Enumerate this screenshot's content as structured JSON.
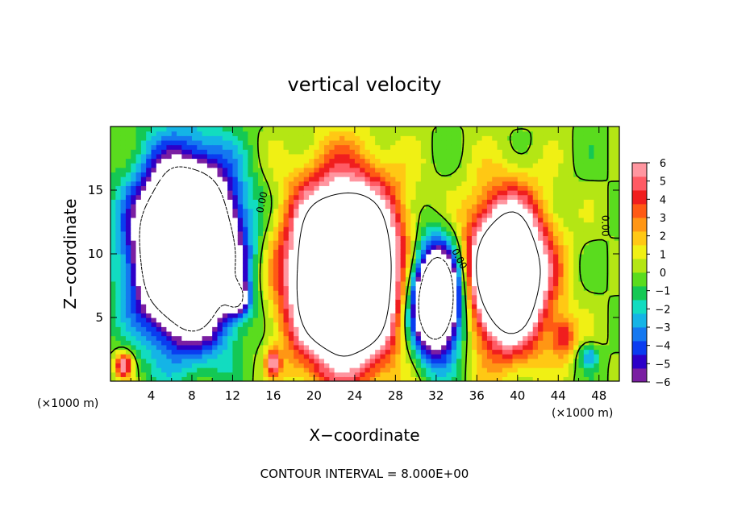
{
  "chart_data": {
    "type": "heatmap",
    "title": "vertical velocity",
    "xlabel": "X−coordinate",
    "ylabel": "Z−coordinate",
    "x_unit": "(×1000 m)",
    "y_unit": "(×1000 m)",
    "footer": "CONTOUR INTERVAL = 8.000E+00",
    "xlim": [
      0,
      50
    ],
    "ylim": [
      0,
      20
    ],
    "x_ticks": [
      "4",
      "8",
      "12",
      "16",
      "20",
      "24",
      "28",
      "32",
      "36",
      "40",
      "44",
      "48"
    ],
    "y_ticks": [
      "5",
      "10",
      "15"
    ],
    "colorbar": {
      "min": -6,
      "max": 6,
      "tick_labels": [
        "6",
        "5",
        "4",
        "3",
        "2",
        "1",
        "0",
        "−1",
        "−2",
        "−3",
        "−4",
        "−5",
        "−6"
      ],
      "colors": [
        "#7a1fa2",
        "#2d00c8",
        "#0a3cf0",
        "#1478f0",
        "#14b4e6",
        "#12dcc0",
        "#14c854",
        "#5adc1e",
        "#b4e614",
        "#f0f014",
        "#ffc814",
        "#ff9614",
        "#ff5a14",
        "#f01e1e",
        "#ff5a64",
        "#ff96a0"
      ]
    },
    "contour_label": "0.00",
    "regions": [
      {
        "kind": "downdraft",
        "x_center": 7.5,
        "z_center": 10.5,
        "x_halfwidth": 5.5,
        "z_halfwidth": 7.5,
        "w_peak": -22
      },
      {
        "kind": "downdraft",
        "x_center": 12.5,
        "z_center": 6.5,
        "x_halfwidth": 1.3,
        "z_halfwidth": 1.5,
        "w_peak": -6
      },
      {
        "kind": "updraft",
        "x_center": 23.0,
        "z_center": 8.5,
        "x_halfwidth": 6.0,
        "z_halfwidth": 8.0,
        "w_peak": 20
      },
      {
        "kind": "downdraft",
        "x_center": 32.0,
        "z_center": 6.5,
        "x_halfwidth": 3.0,
        "z_halfwidth": 5.0,
        "w_peak": -16
      },
      {
        "kind": "updraft",
        "x_center": 39.0,
        "z_center": 8.5,
        "x_halfwidth": 4.5,
        "z_halfwidth": 6.5,
        "w_peak": 16
      },
      {
        "kind": "updraft",
        "x_center": 1.3,
        "z_center": 1.3,
        "x_halfwidth": 1.0,
        "z_halfwidth": 1.2,
        "w_peak": 6
      },
      {
        "kind": "updraft",
        "x_center": 16.0,
        "z_center": 1.5,
        "x_halfwidth": 0.8,
        "z_halfwidth": 1.2,
        "w_peak": 5
      },
      {
        "kind": "updraft",
        "x_center": 44.5,
        "z_center": 3.5,
        "x_halfwidth": 1.5,
        "z_halfwidth": 2.0,
        "w_peak": 4
      },
      {
        "kind": "downdraft",
        "x_center": 47.0,
        "z_center": 2.0,
        "x_halfwidth": 1.2,
        "z_halfwidth": 1.0,
        "w_peak": -3
      }
    ]
  }
}
